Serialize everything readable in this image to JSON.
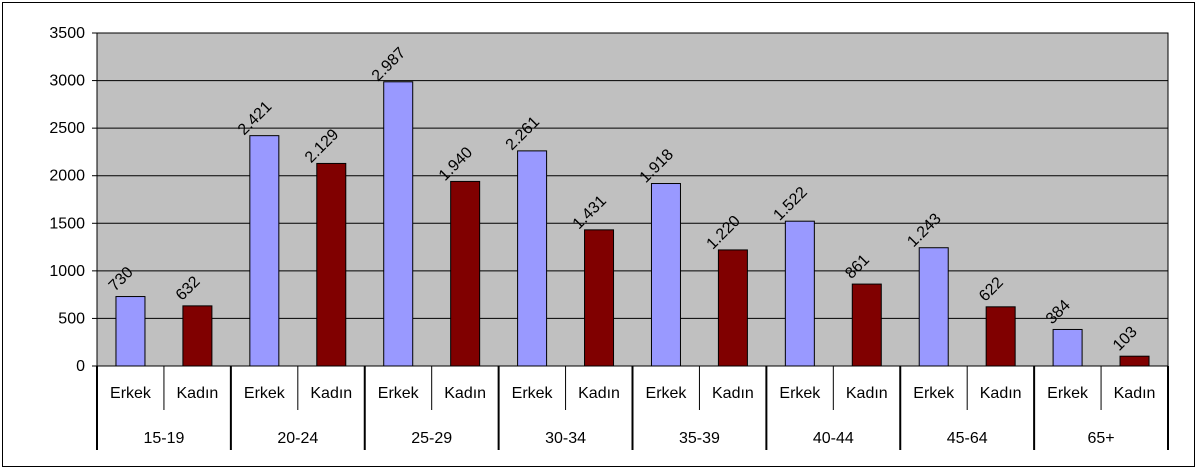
{
  "chart_data": {
    "type": "bar",
    "ylim": [
      0,
      3500
    ],
    "yticks": [
      "0",
      "500",
      "1000",
      "1500",
      "2000",
      "2500",
      "3000",
      "3500"
    ],
    "grid": true,
    "legend": "none",
    "colors": {
      "plot_bg": "#C0C0C0",
      "Erkek": "#9999FF",
      "Kadın": "#800000",
      "grid": "#000000"
    },
    "groups": [
      {
        "label": "15-19",
        "bars": [
          {
            "sub": "Erkek",
            "value": 730,
            "text": "730"
          },
          {
            "sub": "Kadın",
            "value": 632,
            "text": "632"
          }
        ]
      },
      {
        "label": "20-24",
        "bars": [
          {
            "sub": "Erkek",
            "value": 2421,
            "text": "2.421"
          },
          {
            "sub": "Kadın",
            "value": 2129,
            "text": "2.129"
          }
        ]
      },
      {
        "label": "25-29",
        "bars": [
          {
            "sub": "Erkek",
            "value": 2987,
            "text": "2.987"
          },
          {
            "sub": "Kadın",
            "value": 1940,
            "text": "1.940"
          }
        ]
      },
      {
        "label": "30-34",
        "bars": [
          {
            "sub": "Erkek",
            "value": 2261,
            "text": "2.261"
          },
          {
            "sub": "Kadın",
            "value": 1431,
            "text": "1.431"
          }
        ]
      },
      {
        "label": "35-39",
        "bars": [
          {
            "sub": "Erkek",
            "value": 1918,
            "text": "1.918"
          },
          {
            "sub": "Kadın",
            "value": 1220,
            "text": "1.220"
          }
        ]
      },
      {
        "label": "40-44",
        "bars": [
          {
            "sub": "Erkek",
            "value": 1522,
            "text": "1.522"
          },
          {
            "sub": "Kadın",
            "value": 861,
            "text": "861"
          }
        ]
      },
      {
        "label": "45-64",
        "bars": [
          {
            "sub": "Erkek",
            "value": 1243,
            "text": "1.243"
          },
          {
            "sub": "Kadın",
            "value": 622,
            "text": "622"
          }
        ]
      },
      {
        "label": "65+",
        "bars": [
          {
            "sub": "Erkek",
            "value": 384,
            "text": "384"
          },
          {
            "sub": "Kadın",
            "value": 103,
            "text": "103"
          }
        ]
      }
    ]
  }
}
